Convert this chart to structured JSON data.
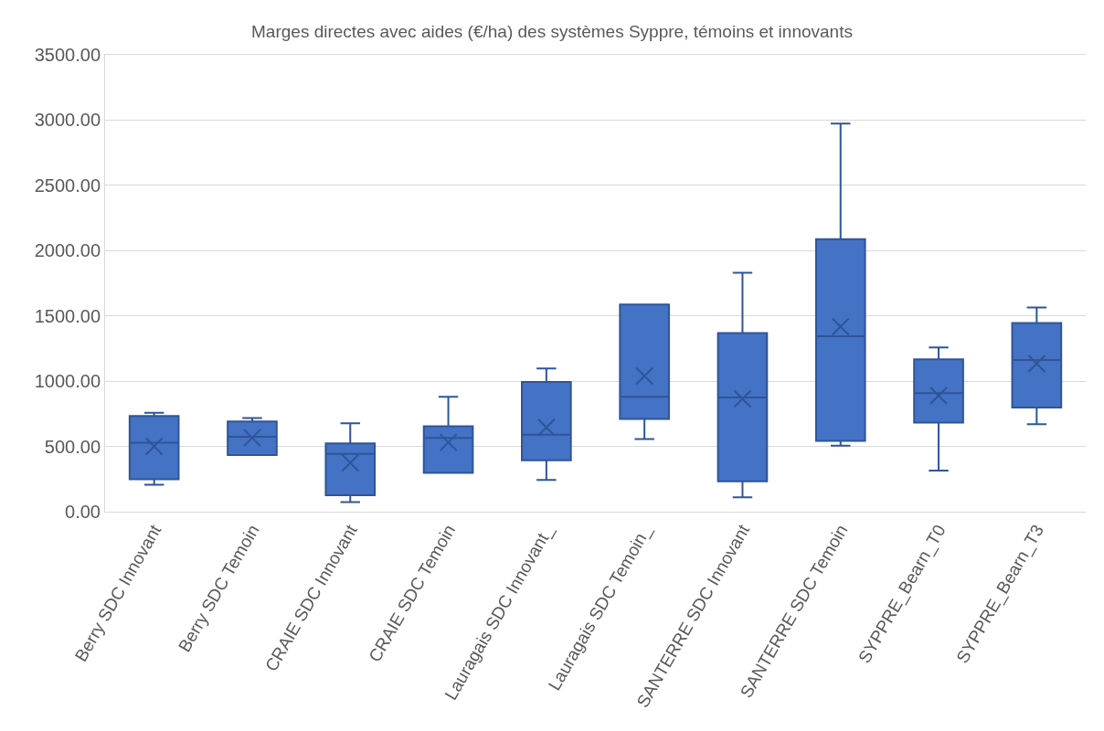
{
  "chart_data": {
    "type": "box",
    "title": "Marges directes avec aides (€/ha) des systèmes Syppre, témoins et innovants",
    "categories": [
      "Berry SDC Innovant",
      "Berry SDC Temoin",
      "CRAIE SDC Innovant",
      "CRAIE SDC Temoin",
      "Lauragais SDC Innovant_",
      "Lauragais SDC Temoin_",
      "SANTERRE SDC Innovant",
      "SANTERRE SDC Temoin",
      "SYPPRE_Bearn_T0",
      "SYPPRE_Bearn_T3"
    ],
    "color": "#4472c4",
    "boxes": [
      {
        "low": 206,
        "q1": 249,
        "median": 529,
        "q3": 734,
        "high": 757,
        "mean": 500
      },
      {
        "low": 434,
        "q1": 434,
        "median": 574,
        "q3": 691,
        "high": 717,
        "mean": 566
      },
      {
        "low": 74,
        "q1": 126,
        "median": 443,
        "q3": 523,
        "high": 677,
        "mean": 374
      },
      {
        "low": 298,
        "q1": 298,
        "median": 566,
        "q3": 654,
        "high": 880,
        "mean": 531
      },
      {
        "low": 243,
        "q1": 394,
        "median": 589,
        "q3": 994,
        "high": 1097,
        "mean": 646
      },
      {
        "low": 557,
        "q1": 710,
        "median": 881,
        "q3": 1587,
        "high": 1587,
        "mean": 1040
      },
      {
        "low": 111,
        "q1": 233,
        "median": 875,
        "q3": 1369,
        "high": 1830,
        "mean": 864
      },
      {
        "low": 506,
        "q1": 543,
        "median": 1344,
        "q3": 2088,
        "high": 2974,
        "mean": 1418
      },
      {
        "low": 315,
        "q1": 682,
        "median": 909,
        "q3": 1168,
        "high": 1259,
        "mean": 889
      },
      {
        "low": 670,
        "q1": 798,
        "median": 1162,
        "q3": 1446,
        "high": 1565,
        "mean": 1134
      }
    ],
    "ylim": [
      0,
      3500
    ],
    "yticks": [
      {
        "value": 0,
        "label": "0.00"
      },
      {
        "value": 500,
        "label": "500.00"
      },
      {
        "value": 1000,
        "label": "1000.00"
      },
      {
        "value": 1500,
        "label": "1500.00"
      },
      {
        "value": 2000,
        "label": "2000.00"
      },
      {
        "value": 2500,
        "label": "2500.00"
      },
      {
        "value": 3000,
        "label": "3000.00"
      },
      {
        "value": 3500,
        "label": "3500.00"
      }
    ],
    "grid": "y"
  }
}
